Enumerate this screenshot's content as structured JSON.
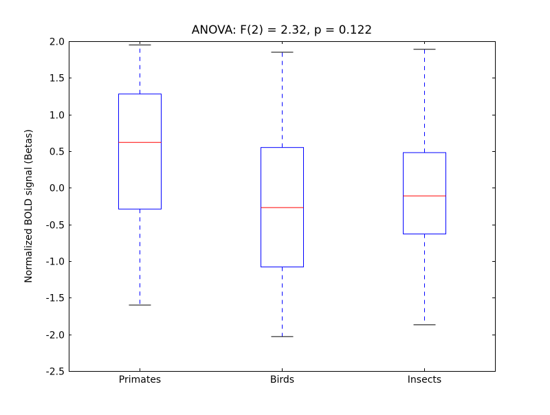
{
  "chart_data": {
    "type": "box",
    "title": "ANOVA: F(2) = 2.32, p = 0.122",
    "xlabel": "",
    "ylabel": "Normalized BOLD signal (Betas)",
    "ylim": [
      -2.5,
      2.0
    ],
    "yticks": [
      "-2.5",
      "-2.0",
      "-1.5",
      "-1.0",
      "-0.5",
      "0.0",
      "0.5",
      "1.0",
      "1.5",
      "2.0"
    ],
    "ytick_values": [
      -2.5,
      -2.0,
      -1.5,
      -1.0,
      -0.5,
      0.0,
      0.5,
      1.0,
      1.5,
      2.0
    ],
    "categories": [
      "Primates",
      "Birds",
      "Insects"
    ],
    "boxes": [
      {
        "whisker_low": -1.6,
        "q1": -0.29,
        "median": 0.62,
        "q3": 1.28,
        "whisker_high": 1.95
      },
      {
        "whisker_low": -2.03,
        "q1": -1.08,
        "median": -0.27,
        "q3": 0.55,
        "whisker_high": 1.85
      },
      {
        "whisker_low": -1.87,
        "q1": -0.63,
        "median": -0.11,
        "q3": 0.48,
        "whisker_high": 1.89
      }
    ],
    "grid": false,
    "colors": {
      "box": "#0000ff",
      "median": "#ff0000",
      "whisker": "#0000ff",
      "cap": "#000000"
    }
  }
}
